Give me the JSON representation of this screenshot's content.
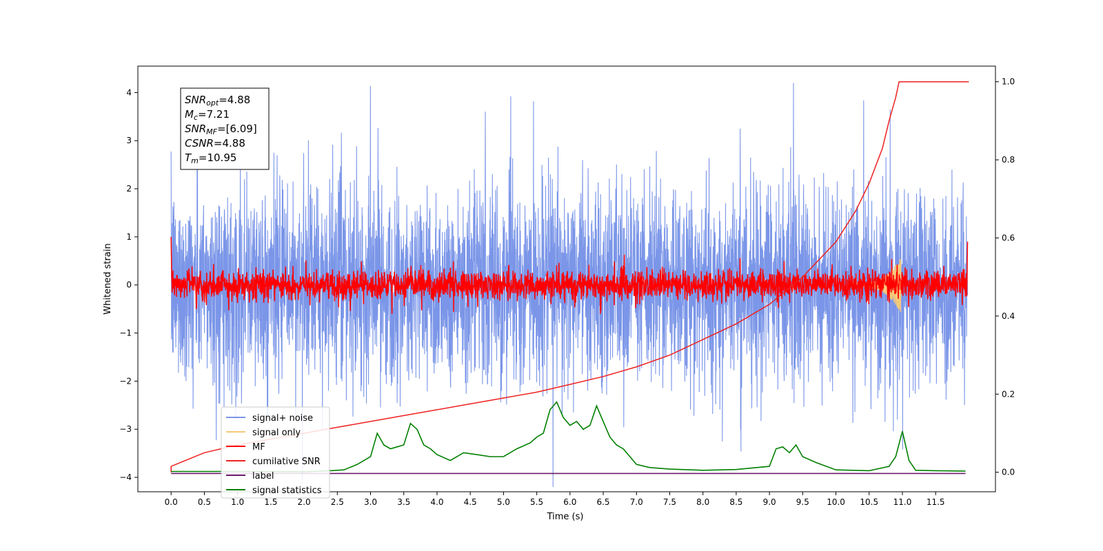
{
  "chart_data": {
    "type": "line",
    "xlabel": "Time (s)",
    "ylabel": "Whitened strain",
    "xlim": [
      -0.5,
      12.4
    ],
    "ylim": [
      -4.3,
      4.55
    ],
    "y2lim": [
      -0.05,
      1.04
    ],
    "x_ticks": [
      "0.0",
      "0.5",
      "1.0",
      "1.5",
      "2.0",
      "2.5",
      "3.0",
      "3.5",
      "4.0",
      "4.5",
      "5.0",
      "5.5",
      "6.0",
      "6.5",
      "7.0",
      "7.5",
      "8.0",
      "8.5",
      "9.0",
      "9.5",
      "10.0",
      "10.5",
      "11.0",
      "11.5"
    ],
    "y_ticks": [
      "4",
      "3",
      "2",
      "1",
      "0",
      "−1",
      "−2",
      "−3",
      "−4"
    ],
    "y2_ticks": [
      "1.0",
      "0.8",
      "0.6",
      "0.4",
      "0.2",
      "0.0"
    ],
    "grid": false,
    "legend_position": "lower-left",
    "legend": [
      {
        "label": "signal+ noise",
        "color": "#7b96e8"
      },
      {
        "label": "signal only",
        "color": "#f5c97a"
      },
      {
        "label": "MF",
        "color": "#ff0000"
      },
      {
        "label": "cumilative SNR",
        "color": "#ee2020"
      },
      {
        "label": "label",
        "color": "#6a1a6a"
      },
      {
        "label": "signal statistics",
        "color": "#008000"
      }
    ],
    "annotation": [
      {
        "base": "SNR",
        "sub": "opt",
        "value": "=4.88"
      },
      {
        "base": "M",
        "sub": "c",
        "value": "=7.21"
      },
      {
        "base": "SNR",
        "sub": "MF",
        "value": "=[6.09]"
      },
      {
        "base": "CSNR",
        "sub": "",
        "value": "=4.88"
      },
      {
        "base": "T",
        "sub": "m",
        "value": "=10.95"
      }
    ],
    "series": [
      {
        "name": "cumilative SNR",
        "axis": "right",
        "color": "#ee2020",
        "x": [
          0.0,
          0.5,
          1.0,
          1.5,
          2.0,
          2.5,
          3.0,
          3.5,
          4.0,
          4.5,
          5.0,
          5.5,
          6.0,
          6.5,
          7.0,
          7.5,
          8.0,
          8.5,
          9.0,
          9.5,
          10.0,
          10.3,
          10.5,
          10.7,
          10.8,
          10.9,
          10.95,
          11.0,
          11.5,
          12.0
        ],
        "y": [
          0.015,
          0.05,
          0.07,
          0.085,
          0.1,
          0.115,
          0.13,
          0.145,
          0.16,
          0.175,
          0.19,
          0.205,
          0.225,
          0.245,
          0.27,
          0.3,
          0.34,
          0.38,
          0.43,
          0.5,
          0.59,
          0.67,
          0.74,
          0.83,
          0.9,
          0.96,
          1.0,
          1.0,
          1.0,
          1.0
        ]
      },
      {
        "name": "signal statistics",
        "axis": "right",
        "color": "#008000",
        "x": [
          0.0,
          1.0,
          2.0,
          2.4,
          2.6,
          2.8,
          3.0,
          3.1,
          3.2,
          3.3,
          3.4,
          3.5,
          3.6,
          3.7,
          3.8,
          3.9,
          4.0,
          4.2,
          4.4,
          4.6,
          4.8,
          5.0,
          5.2,
          5.4,
          5.5,
          5.6,
          5.7,
          5.8,
          5.9,
          6.0,
          6.1,
          6.2,
          6.3,
          6.4,
          6.5,
          6.6,
          6.7,
          6.8,
          7.0,
          7.2,
          7.5,
          8.0,
          8.5,
          9.0,
          9.1,
          9.2,
          9.3,
          9.4,
          9.5,
          9.7,
          10.0,
          10.5,
          10.8,
          10.9,
          11.0,
          11.1,
          11.2,
          11.5,
          11.95
        ],
        "y": [
          0.002,
          0.002,
          0.001,
          0.004,
          0.006,
          0.02,
          0.04,
          0.1,
          0.07,
          0.06,
          0.065,
          0.07,
          0.125,
          0.11,
          0.07,
          0.06,
          0.045,
          0.03,
          0.05,
          0.045,
          0.04,
          0.04,
          0.06,
          0.075,
          0.09,
          0.1,
          0.16,
          0.18,
          0.14,
          0.12,
          0.13,
          0.11,
          0.12,
          0.17,
          0.13,
          0.09,
          0.07,
          0.06,
          0.02,
          0.012,
          0.008,
          0.005,
          0.007,
          0.015,
          0.06,
          0.065,
          0.05,
          0.07,
          0.04,
          0.025,
          0.006,
          0.004,
          0.015,
          0.04,
          0.105,
          0.03,
          0.005,
          0.004,
          0.003
        ]
      },
      {
        "name": "label",
        "axis": "left",
        "color": "#6a1a6a",
        "x": [
          0.0,
          11.95
        ],
        "y": [
          -3.92,
          -3.92
        ]
      },
      {
        "name": "signal only",
        "axis": "left",
        "color": "#f5c97a",
        "x_range": [
          10.3,
          10.98
        ],
        "peak": 0.55
      },
      {
        "name": "signal+ noise",
        "axis": "left",
        "color": "#7b96e8",
        "x_range": [
          0.0,
          11.98
        ],
        "amplitude": 4.2
      },
      {
        "name": "MF",
        "axis": "left",
        "color": "#ff0000",
        "x_range": [
          0.0,
          11.98
        ],
        "amplitude": 0.6
      }
    ]
  }
}
